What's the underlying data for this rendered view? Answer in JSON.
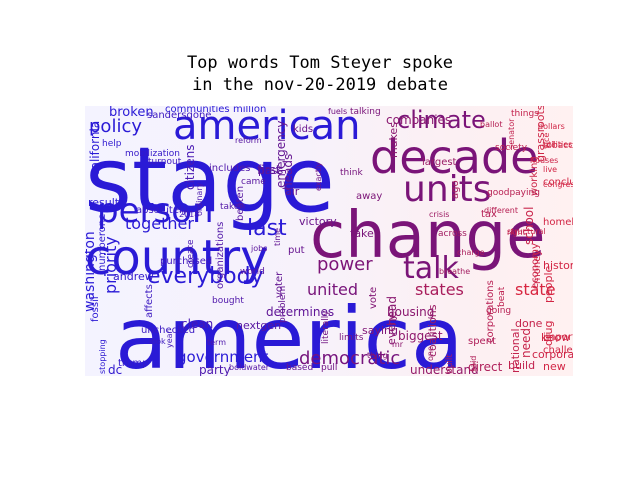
{
  "title_line1": "Top words Tom Steyer spoke",
  "title_line2": "in the nov-20-2019 debate",
  "words": [
    "america",
    "stage",
    "change",
    "decade",
    "country",
    "american",
    "person",
    "units",
    "talk",
    "climate",
    "everybody",
    "policy",
    "together",
    "last",
    "power",
    "united",
    "states",
    "state",
    "democratic",
    "government",
    "priority",
    "washington",
    "california",
    "broken",
    "communities",
    "million",
    "senator",
    "dollars",
    "tobacco",
    "working",
    "conclusion",
    "companies",
    "emergency",
    "pass",
    "beaten",
    "different",
    "structural",
    "economy",
    "history",
    "corporations",
    "done",
    "important",
    "spent",
    "coalitions",
    "housing",
    "saying",
    "limits",
    "nextgen",
    "term",
    "look",
    "trump",
    "determines",
    "air",
    "taken",
    "ordinary",
    "citizens",
    "turnout",
    "mobilization",
    "stopping",
    "fossil",
    "fuels",
    "across",
    "think",
    "exactly",
    "jobs",
    "put",
    "boldwater",
    "understand",
    "direct",
    "build",
    "new",
    "dc",
    "take",
    "party",
    "homeless",
    "drug",
    "built",
    "mr",
    "based",
    "sandersgone",
    "pull",
    "vice",
    "kids",
    "thing",
    "school",
    "beat",
    "head",
    "problem",
    "world",
    "bought",
    "year",
    "absolutely",
    "create",
    "corporate",
    "charge",
    "goodpaying",
    "crisis",
    "away",
    "time",
    "andrew",
    "numberone",
    "literally",
    "society",
    "ago",
    "challenge",
    "organizations",
    "vote",
    "voter",
    "breathe",
    "biggest",
    "clean",
    "unchecked",
    "national",
    "talking",
    "victory",
    "reform",
    "purchased",
    "2018",
    "live",
    "ballot",
    "largest",
    "help",
    "result",
    "includes",
    "affects",
    "things",
    "grassroots",
    "utilities",
    "houses",
    "congress",
    "makes",
    "heads",
    "first",
    "came",
    "tax",
    "right",
    "money",
    "people",
    "going",
    "need",
    "know",
    "said",
    "one",
    "every"
  ],
  "colors": {
    "left_blue": "#2a1ad6",
    "mid_purple": "#7a1478",
    "right_red": "#e0283c",
    "background_left": "#f4f3ff",
    "background_right": "#fff1f1"
  }
}
